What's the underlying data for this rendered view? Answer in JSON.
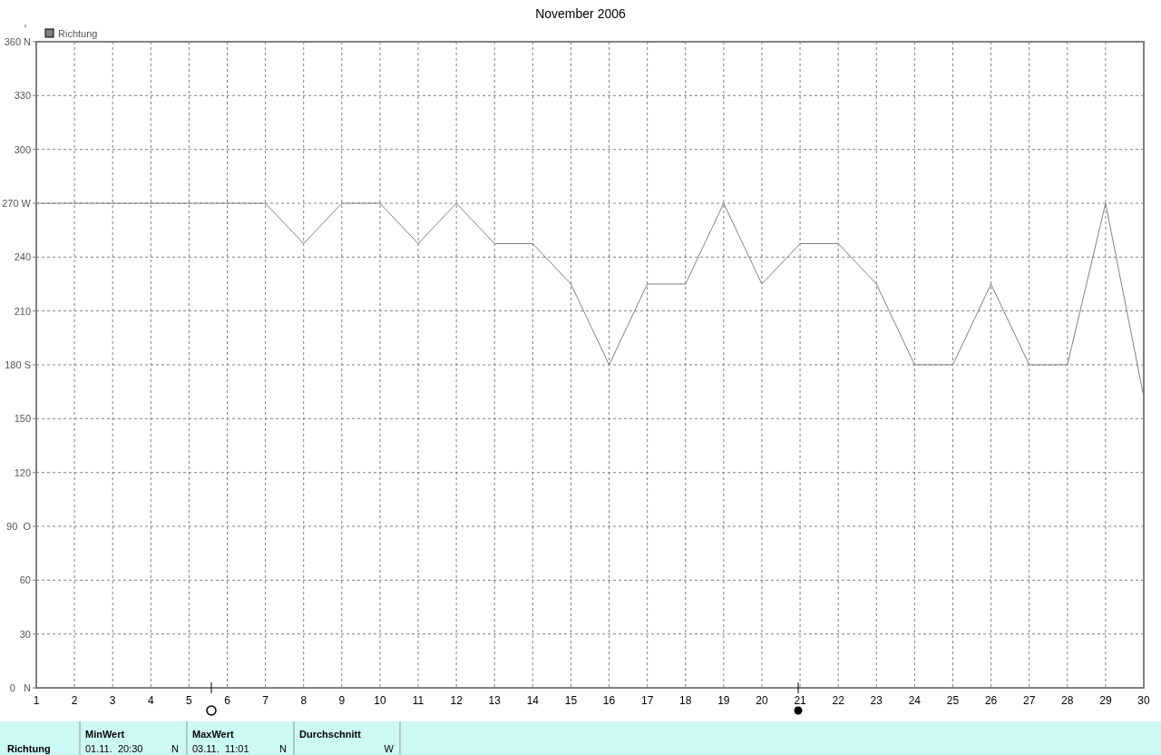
{
  "chart_data": {
    "type": "line",
    "title": "November 2006",
    "ylabel": "°",
    "x": [
      1,
      2,
      3,
      4,
      5,
      6,
      7,
      8,
      9,
      10,
      11,
      12,
      13,
      14,
      15,
      16,
      17,
      18,
      19,
      20,
      21,
      22,
      23,
      24,
      25,
      26,
      27,
      28,
      29,
      30
    ],
    "series": [
      {
        "name": "Richtung",
        "color": "#808080",
        "values": [
          270,
          270,
          270,
          270,
          270,
          270,
          270,
          247.5,
          270,
          270,
          247.5,
          270,
          247.5,
          247.5,
          225,
          180,
          225,
          225,
          270,
          225,
          247.5,
          247.5,
          225,
          180,
          180,
          225,
          180,
          180,
          270,
          162
        ]
      }
    ],
    "xlim": [
      1,
      30
    ],
    "xticks": [
      1,
      2,
      3,
      4,
      5,
      6,
      7,
      8,
      9,
      10,
      11,
      12,
      13,
      14,
      15,
      16,
      17,
      18,
      19,
      20,
      21,
      22,
      23,
      24,
      25,
      26,
      27,
      28,
      29,
      30
    ],
    "ylim": [
      0,
      360
    ],
    "yticks": [
      {
        "value": 0,
        "label": "0   N"
      },
      30,
      60,
      {
        "value": 90,
        "label": "90  O"
      },
      120,
      150,
      {
        "value": 180,
        "label": "180 S"
      },
      210,
      240,
      {
        "value": 270,
        "label": "270 W"
      },
      300,
      330,
      {
        "value": 360,
        "label": "360 N"
      }
    ],
    "grid": true,
    "legend": "top left",
    "marker": "none",
    "line_style": "solid",
    "annotations": [
      "Richtung",
      "MinWert",
      "01.11.  20:30",
      "N",
      "MaxWert",
      "03.11.  11:01",
      "N",
      "Durchschnitt",
      "W"
    ]
  }
}
